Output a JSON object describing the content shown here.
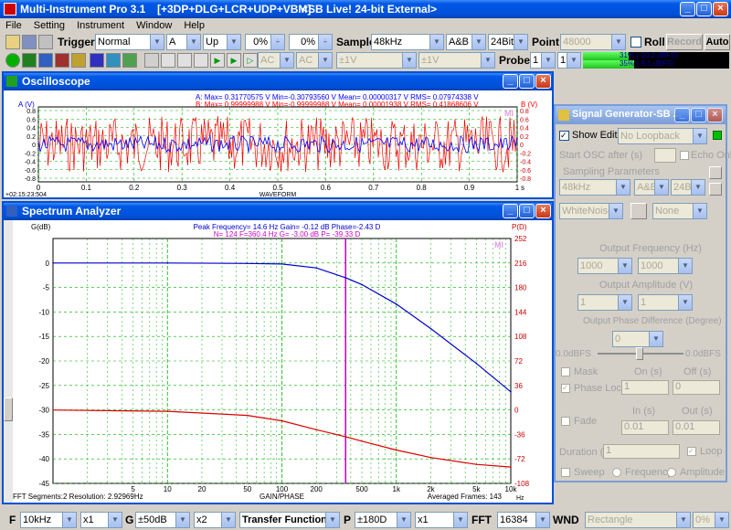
{
  "app": {
    "title": "Multi-Instrument Pro 3.1",
    "subtitle": "[+3DP+DLG+LCR+UDP+VBM]",
    "device": "<SB Live! 24-bit External>",
    "menu": [
      "File",
      "Setting",
      "Instrument",
      "Window",
      "Help"
    ]
  },
  "toolbar1": {
    "trigger_label": "Trigger",
    "trigger_mode": "Normal",
    "trigger_channel": "A",
    "trigger_edge": "Up",
    "pct1": "0%",
    "pct2": "0%",
    "sample_label": "Sample",
    "sample_rate": "48kHz",
    "channels": "A&B",
    "bits": "24Bit",
    "point_label": "Point",
    "point_value": "48000",
    "roll_label": "Roll",
    "record_label": "Record",
    "auto_label": "Auto"
  },
  "toolbar2": {
    "ac1": "AC",
    "ac2": "AC",
    "v1": "±1V",
    "v2": "±1V",
    "probe_label": "Probe",
    "probe_a": "1",
    "probe_b": "1",
    "level_a": "31% (-10.2 dBFS)",
    "level_b": "35% (-9.1 dBFS)",
    "level_a_fraction": 0.31,
    "level_b_fraction": 0.35
  },
  "oscilloscope": {
    "title": "Oscilloscope",
    "stats_a": "A: Max= 0.31770575 V   Min=-0.30793560 V   Mean= 0.00000317 V   RMS= 0.07974338 V",
    "stats_b": "B: Max= 0.99999988 V   Min=-0.99999988 V   Mean= 0.00001938 V   RMS= 0.41868606 V",
    "ylabel_a": "A (V)",
    "ylabel_b": "B (V)",
    "y_ticks": [
      "0.8",
      "0.6",
      "0.4",
      "0.2",
      "0",
      "-0.2",
      "-0.4",
      "-0.6",
      "-0.8"
    ],
    "x_ticks": [
      "0",
      "0.1",
      "0.2",
      "0.3",
      "0.4",
      "0.5",
      "0.6",
      "0.7",
      "0.8",
      "0.9",
      "1"
    ],
    "x_unit": "s",
    "time": "+02:15:23:504",
    "mode": "WAVEFORM",
    "badge": "MI",
    "colors": {
      "a": "#0000ff",
      "b": "#ff0000",
      "grid": "#00b000"
    }
  },
  "spectrum": {
    "title": "Spectrum Analyzer",
    "info1": "Peak Frequency= 14.6 Hz   Gain= -0.12 dB   Phase=-2.43 D",
    "info2": "N= 124   F=360.4 Hz   G= -3.00 dB   P= -39.33 D",
    "ylabel_left": "G(dB)",
    "ylabel_right": "P(D)",
    "footer_left": "FFT Segments:2     Resolution: 2.92969Hz",
    "footer_mid": "GAIN/PHASE",
    "footer_right": "Averaged Frames: 143",
    "x_unit": "Hz",
    "badge": "MI"
  },
  "chart_data": {
    "type": "line",
    "xlabel": "GAIN/PHASE",
    "ylabel": "G(dB)",
    "y2label": "P(D)",
    "x_scale": "log",
    "xlim": [
      1,
      10000
    ],
    "ylim": [
      -45,
      5
    ],
    "y2lim": [
      -108,
      252
    ],
    "x_ticks": [
      "5",
      "10",
      "20",
      "50",
      "100",
      "200",
      "500",
      "1k",
      "2k",
      "5k",
      "10k"
    ],
    "y_ticks": [
      "0",
      "-5",
      "-10",
      "-15",
      "-20",
      "-25",
      "-30",
      "-35",
      "-40",
      "-45"
    ],
    "y2_ticks": [
      "252",
      "216",
      "180",
      "144",
      "108",
      "72",
      "36",
      "0",
      "-36",
      "-72",
      "-108"
    ],
    "marker_x": 360.4,
    "series": [
      {
        "name": "Gain",
        "axis": "left",
        "color": "#0000cc",
        "x": [
          1,
          10,
          50,
          100,
          200,
          360,
          500,
          1000,
          2000,
          5000,
          10000
        ],
        "values": [
          0,
          0,
          -0.1,
          -0.2,
          -1,
          -3,
          -4.4,
          -8.4,
          -13.4,
          -20.5,
          -26.3
        ]
      },
      {
        "name": "Phase",
        "axis": "right",
        "color": "#dd0000",
        "x": [
          1,
          10,
          50,
          100,
          200,
          360,
          500,
          1000,
          2000,
          5000,
          10000
        ],
        "values": [
          -0.2,
          -2,
          -8,
          -16,
          -29,
          -39.3,
          -46,
          -59,
          -70,
          -80,
          -84
        ]
      }
    ]
  },
  "signal_generator": {
    "title": "Signal Generator-SB ...",
    "show_editor": "Show Editor",
    "loopback": "No Loopback",
    "start_osc": "Start OSC after (s)",
    "echo_only": "Echo Only",
    "sampling_params": "Sampling Parameters",
    "rate": "48kHz",
    "ch": "A&B",
    "bits": "24Bit",
    "wave_a": "WhiteNoise",
    "wave_b": "None",
    "out_freq": "Output Frequency (Hz)",
    "freq_a": "1000",
    "freq_b": "1000",
    "out_amp": "Output Amplitude (V)",
    "amp_a": "1",
    "amp_b": "1",
    "out_phase": "Output Phase Difference (Degree)",
    "phase": "0",
    "dbfs_left": "0.0dBFS",
    "dbfs_right": "0.0dBFS",
    "mask": "Mask",
    "on_s": "On (s)",
    "off_s": "Off (s)",
    "phase_lock": "Phase Lock",
    "lock_on": "1",
    "lock_off": "0",
    "fade": "Fade",
    "in_s": "In (s)",
    "out_s": "Out (s)",
    "fade_in": "0.01",
    "fade_out": "0.01",
    "duration": "Duration (s)",
    "duration_val": "1",
    "loop": "Loop",
    "sweep": "Sweep",
    "frequency": "Frequency",
    "amplitude": "Amplitude"
  },
  "bottombar": {
    "f": "F",
    "f_val": "10kHz",
    "fx": "x1",
    "g": "G",
    "g_val": "±50dB",
    "gx": "x2",
    "func": "Transfer Function",
    "p": "P",
    "p_val": "±180D",
    "px": "x1",
    "fft": "FFT",
    "fft_val": "16384",
    "wnd": "WND",
    "wnd_val": "Rectangle",
    "pct": "0%"
  }
}
